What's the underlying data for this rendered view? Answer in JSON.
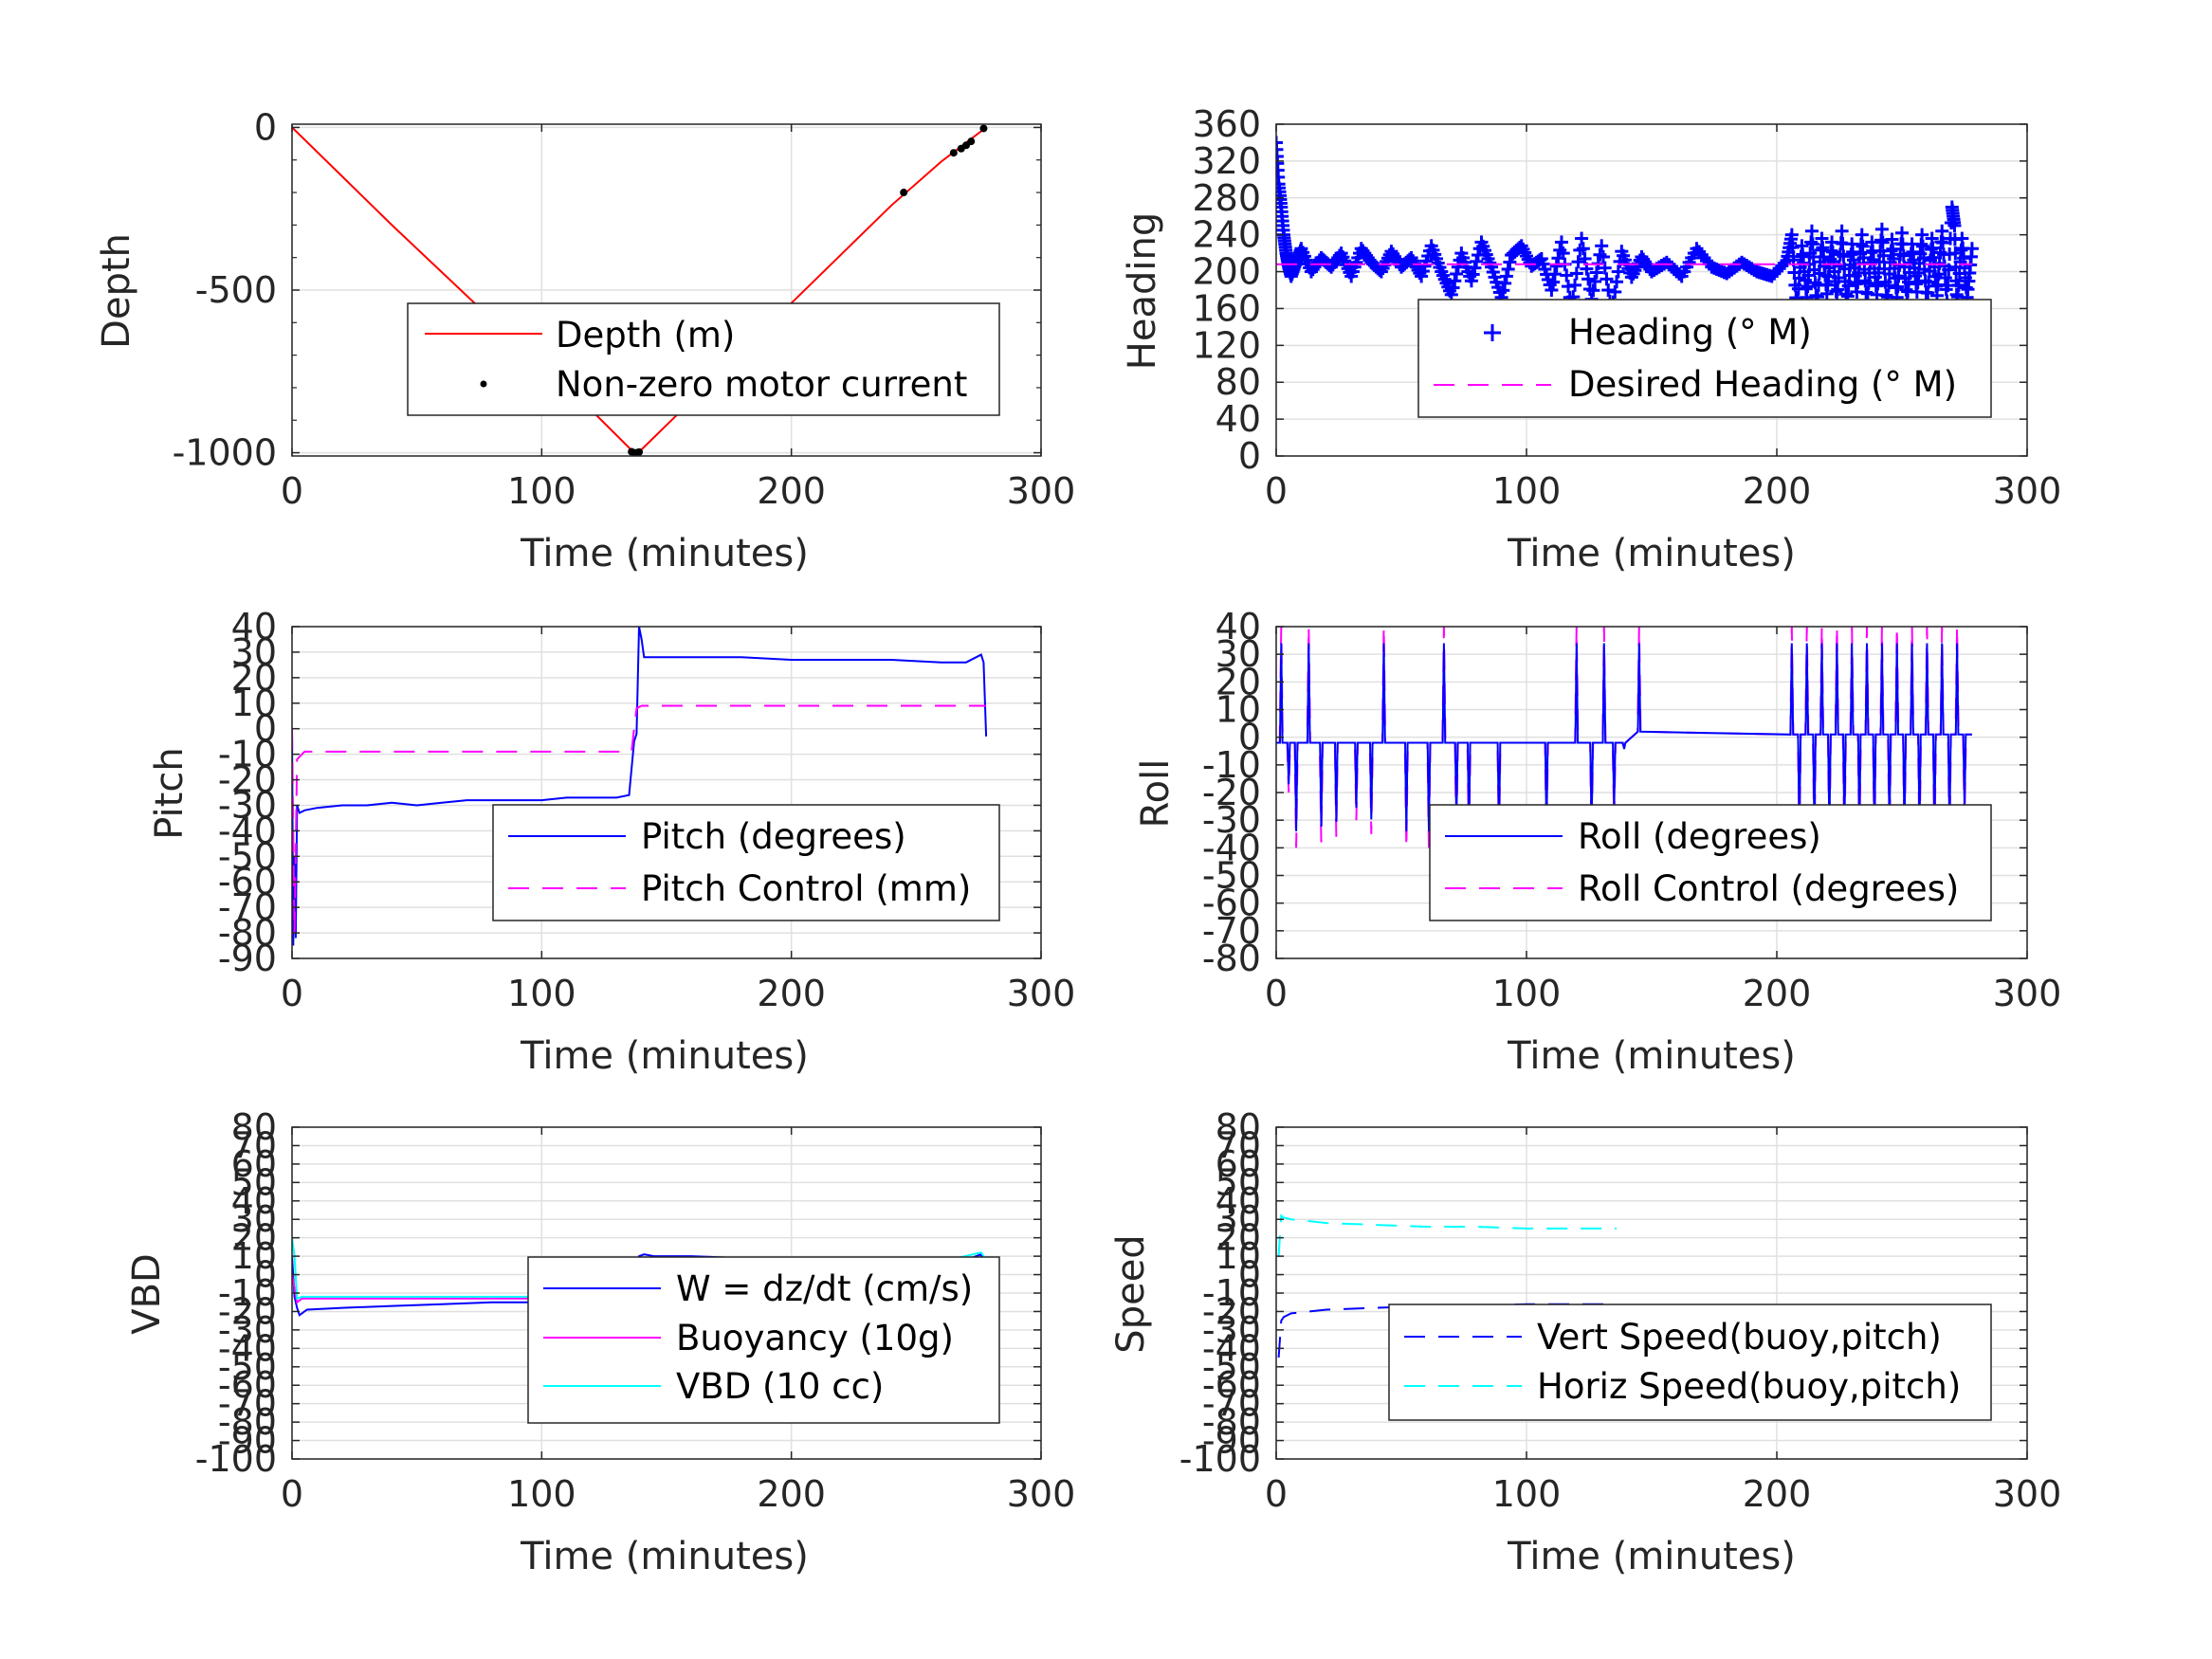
{
  "figure": {
    "background": "#ffffff",
    "grid_color": "#e0e0e0",
    "axes_color": "#262626"
  },
  "chart_data": [
    {
      "id": "depth",
      "type": "line",
      "xlabel": "Time (minutes)",
      "ylabel": "Depth",
      "xlim": [
        0,
        300
      ],
      "ylim": [
        -1010,
        10
      ],
      "xticks": [
        0,
        100,
        200,
        300
      ],
      "xtick_labels": [
        "0",
        "100",
        "200",
        "300"
      ],
      "yticks": [
        0,
        -500,
        -1000
      ],
      "ytick_labels": [
        "0",
        "-500",
        "-1000"
      ],
      "yminor_ticks": [
        -100,
        -200,
        -300,
        -400,
        -600,
        -700,
        -800,
        -900
      ],
      "grid": true,
      "legend_position": "bottom-right",
      "series": [
        {
          "name": "Depth (m)",
          "kind": "line",
          "color": "#ff0000",
          "dash": "",
          "x": [
            0,
            20,
            40,
            60,
            80,
            100,
            120,
            137,
            140,
            160,
            180,
            200,
            220,
            240,
            260,
            278
          ],
          "y": [
            0,
            -150,
            -300,
            -445,
            -590,
            -730,
            -870,
            -1000,
            -990,
            -840,
            -690,
            -540,
            -390,
            -240,
            -105,
            0
          ]
        },
        {
          "name": "Non-zero motor current",
          "kind": "dots",
          "color": "#000000",
          "x": [
            136,
            137,
            138,
            139,
            245,
            265,
            268,
            270,
            272,
            277
          ],
          "y": [
            -997,
            -1000,
            -1000,
            -998,
            -200,
            -78,
            -65,
            -55,
            -43,
            -3
          ]
        }
      ]
    },
    {
      "id": "heading",
      "type": "line",
      "xlabel": "Time (minutes)",
      "ylabel": "Heading",
      "xlim": [
        0,
        300
      ],
      "ylim": [
        0,
        360
      ],
      "xticks": [
        0,
        100,
        200,
        300
      ],
      "xtick_labels": [
        "0",
        "100",
        "200",
        "300"
      ],
      "yticks": [
        0,
        40,
        80,
        120,
        160,
        200,
        240,
        280,
        320,
        360
      ],
      "ytick_labels": [
        "0",
        "40",
        "80",
        "120",
        "160",
        "200",
        "240",
        "280",
        "320",
        "360"
      ],
      "grid": true,
      "legend_position": "bottom-right",
      "series": [
        {
          "name": "Heading (° M)",
          "kind": "plus",
          "color": "#0000ff",
          "x": [
            0,
            1,
            2,
            3,
            4,
            5,
            6,
            8,
            10,
            14,
            18,
            22,
            26,
            30,
            34,
            38,
            42,
            46,
            50,
            54,
            58,
            62,
            66,
            70,
            74,
            78,
            82,
            86,
            90,
            94,
            98,
            102,
            106,
            110,
            114,
            118,
            122,
            126,
            130,
            134,
            138,
            142,
            146,
            150,
            156,
            162,
            168,
            174,
            180,
            186,
            192,
            198,
            204,
            206,
            208,
            210,
            212,
            214,
            216,
            218,
            220,
            222,
            224,
            226,
            228,
            230,
            232,
            234,
            236,
            238,
            240,
            242,
            244,
            246,
            248,
            250,
            252,
            254,
            256,
            258,
            260,
            262,
            264,
            266,
            268,
            270,
            271,
            272,
            274,
            276,
            278
          ],
          "y": [
            340,
            295,
            270,
            240,
            220,
            205,
            195,
            210,
            225,
            200,
            215,
            205,
            220,
            195,
            225,
            210,
            200,
            222,
            205,
            215,
            195,
            228,
            200,
            175,
            220,
            190,
            232,
            205,
            172,
            218,
            228,
            206,
            214,
            180,
            232,
            160,
            236,
            170,
            228,
            156,
            222,
            194,
            216,
            200,
            210,
            195,
            225,
            205,
            198,
            210,
            200,
            195,
            212,
            240,
            158,
            228,
            172,
            244,
            160,
            236,
            176,
            232,
            168,
            244,
            162,
            230,
            178,
            240,
            165,
            232,
            175,
            246,
            160,
            235,
            172,
            242,
            168,
            230,
            178,
            240,
            165,
            236,
            174,
            244,
            168,
            270,
            250,
            160,
            236,
            172,
            225
          ]
        },
        {
          "name": "Desired Heading (° M)",
          "kind": "line",
          "color": "#ff00ff",
          "dash": "22 14",
          "x": [
            0,
            278
          ],
          "y": [
            208,
            208
          ]
        }
      ]
    },
    {
      "id": "pitch",
      "type": "line",
      "xlabel": "Time (minutes)",
      "ylabel": "Pitch",
      "xlim": [
        0,
        300
      ],
      "ylim": [
        -90,
        40
      ],
      "xticks": [
        0,
        100,
        200,
        300
      ],
      "xtick_labels": [
        "0",
        "100",
        "200",
        "300"
      ],
      "yticks": [
        40,
        30,
        20,
        10,
        0,
        -10,
        -20,
        -30,
        -40,
        -50,
        -60,
        -70,
        -80,
        -90
      ],
      "ytick_labels": [
        "40",
        "30",
        "20",
        "10",
        "0",
        "-10",
        "-20",
        "-30",
        "-40",
        "-50",
        "-60",
        "-70",
        "-80",
        "-90"
      ],
      "grid": true,
      "legend_position": "bottom-right",
      "series": [
        {
          "name": "Pitch (degrees)",
          "kind": "line",
          "color": "#0000ff",
          "dash": "",
          "x": [
            0,
            0.5,
            1,
            1.5,
            2,
            3,
            5,
            10,
            20,
            30,
            40,
            50,
            60,
            70,
            80,
            90,
            100,
            110,
            120,
            130,
            135,
            137,
            138,
            139,
            140,
            141,
            145,
            160,
            180,
            200,
            220,
            240,
            260,
            270,
            274,
            276,
            277,
            278
          ],
          "y": [
            0,
            -85,
            -50,
            -82,
            -30,
            -33,
            -32,
            -31,
            -30,
            -30,
            -29,
            -30,
            -29,
            -28,
            -28,
            -28,
            -28,
            -27,
            -27,
            -27,
            -26,
            -5,
            -2,
            40,
            35,
            28,
            28,
            28,
            28,
            27,
            27,
            27,
            26,
            26,
            28,
            29,
            26,
            -3
          ]
        },
        {
          "name": "Pitch Control (mm)",
          "kind": "line",
          "color": "#ff00ff",
          "dash": "22 14",
          "x": [
            0,
            1,
            2,
            5,
            60,
            120,
            136,
            137,
            138,
            140,
            180,
            240,
            276,
            278
          ],
          "y": [
            0,
            -80,
            -12,
            -9,
            -9,
            -9,
            -9,
            0,
            8,
            9,
            9,
            9,
            9,
            9
          ]
        }
      ]
    },
    {
      "id": "roll",
      "type": "line",
      "xlabel": "Time (minutes)",
      "ylabel": "Roll",
      "xlim": [
        0,
        300
      ],
      "ylim": [
        -80,
        40
      ],
      "xticks": [
        0,
        100,
        200,
        300
      ],
      "xtick_labels": [
        "0",
        "100",
        "200",
        "300"
      ],
      "yticks": [
        40,
        30,
        20,
        10,
        0,
        -10,
        -20,
        -30,
        -40,
        -50,
        -60,
        -70,
        -80
      ],
      "ytick_labels": [
        "40",
        "30",
        "20",
        "10",
        "0",
        "-10",
        "-20",
        "-30",
        "-40",
        "-50",
        "-60",
        "-70",
        "-80"
      ],
      "grid": true,
      "legend_position": "bottom-right",
      "roll_base": [
        {
          "x0": 0,
          "x1": 140,
          "y": -2
        },
        {
          "x0": 140,
          "x1": 205,
          "y": 2
        },
        {
          "x0": 205,
          "x1": 278,
          "y": 1
        }
      ],
      "roll_spikes": [
        {
          "x": 2,
          "peak": 40
        },
        {
          "x": 5,
          "peak": -20
        },
        {
          "x": 8,
          "peak": -40
        },
        {
          "x": 13,
          "peak": 40
        },
        {
          "x": 18,
          "peak": -38
        },
        {
          "x": 24,
          "peak": -36
        },
        {
          "x": 32,
          "peak": -30
        },
        {
          "x": 38,
          "peak": -35
        },
        {
          "x": 43,
          "peak": 40
        },
        {
          "x": 52,
          "peak": -40
        },
        {
          "x": 61,
          "peak": -40
        },
        {
          "x": 67,
          "peak": 40
        },
        {
          "x": 72,
          "peak": -36
        },
        {
          "x": 77,
          "peak": -40
        },
        {
          "x": 89,
          "peak": -40
        },
        {
          "x": 108,
          "peak": -40
        },
        {
          "x": 120,
          "peak": 40
        },
        {
          "x": 126,
          "peak": -40
        },
        {
          "x": 131,
          "peak": 40
        },
        {
          "x": 135,
          "peak": -30
        },
        {
          "x": 139,
          "peak": -5
        },
        {
          "x": 145,
          "peak": 40
        },
        {
          "x": 206,
          "peak": 40
        },
        {
          "x": 209,
          "peak": -40
        },
        {
          "x": 212,
          "peak": 40
        },
        {
          "x": 215,
          "peak": -40
        },
        {
          "x": 218,
          "peak": 40
        },
        {
          "x": 221,
          "peak": -40
        },
        {
          "x": 224,
          "peak": 40
        },
        {
          "x": 227,
          "peak": -40
        },
        {
          "x": 230,
          "peak": 40
        },
        {
          "x": 233,
          "peak": -40
        },
        {
          "x": 236,
          "peak": 40
        },
        {
          "x": 239,
          "peak": -40
        },
        {
          "x": 242,
          "peak": 40
        },
        {
          "x": 245,
          "peak": -40
        },
        {
          "x": 248,
          "peak": 40
        },
        {
          "x": 251,
          "peak": -40
        },
        {
          "x": 254,
          "peak": 40
        },
        {
          "x": 257,
          "peak": -40
        },
        {
          "x": 260,
          "peak": 40
        },
        {
          "x": 263,
          "peak": -40
        },
        {
          "x": 266,
          "peak": 40
        },
        {
          "x": 269,
          "peak": -40
        },
        {
          "x": 272,
          "peak": 40
        },
        {
          "x": 275,
          "peak": -30
        }
      ],
      "series": [
        {
          "name": "Roll (degrees)",
          "kind": "line",
          "color": "#0000ff",
          "dash": ""
        },
        {
          "name": "Roll Control (degrees)",
          "kind": "line",
          "color": "#ff00ff",
          "dash": "22 14"
        }
      ]
    },
    {
      "id": "vbd",
      "type": "line",
      "xlabel": "Time (minutes)",
      "ylabel": "VBD",
      "xlim": [
        0,
        300
      ],
      "ylim": [
        -100,
        80
      ],
      "xticks": [
        0,
        100,
        200,
        300
      ],
      "xtick_labels": [
        "0",
        "100",
        "200",
        "300"
      ],
      "yticks": [
        80,
        70,
        60,
        50,
        40,
        30,
        20,
        10,
        0,
        -10,
        -20,
        -30,
        -40,
        -50,
        -60,
        -70,
        -80,
        -90,
        -100
      ],
      "ytick_labels": [
        "80",
        "70",
        "60",
        "50",
        "40",
        "30",
        "20",
        "10",
        "0",
        "-10",
        "-20",
        "-30",
        "-40",
        "-50",
        "-60",
        "-70",
        "-80",
        "-90",
        "-100"
      ],
      "grid": true,
      "legend_position": "bottom-right",
      "series": [
        {
          "name": "W = dz/dt (cm/s)",
          "kind": "line",
          "color": "#0000ff",
          "dash": "",
          "x": [
            0,
            1,
            2,
            3,
            6,
            20,
            40,
            60,
            80,
            100,
            120,
            135,
            137,
            139,
            141,
            145,
            160,
            180,
            200,
            220,
            240,
            260,
            270,
            276,
            277,
            278
          ],
          "y": [
            10,
            -12,
            -18,
            -22,
            -19,
            -18,
            -17,
            -16,
            -15,
            -15,
            -14,
            -13,
            -10,
            10,
            11,
            10,
            10,
            9,
            9,
            8,
            8,
            7,
            8,
            11,
            5,
            -5
          ]
        },
        {
          "name": "Buoyancy (10g)",
          "kind": "line",
          "color": "#ff00ff",
          "dash": "",
          "x": [
            0,
            2,
            4,
            10,
            60,
            120,
            136,
            138,
            140,
            200,
            276,
            278
          ],
          "y": [
            0,
            -15,
            -13,
            -13,
            -13,
            -13,
            -13,
            0,
            7,
            7,
            7,
            7
          ]
        },
        {
          "name": "VBD (10 cc)",
          "kind": "line",
          "color": "#00ffff",
          "dash": "",
          "x": [
            0,
            1,
            2,
            4,
            10,
            60,
            120,
            136,
            138,
            140,
            200,
            260,
            276,
            278
          ],
          "y": [
            20,
            10,
            -13,
            -12,
            -12,
            -12,
            -12,
            -12,
            0,
            7,
            7,
            7,
            12,
            8
          ]
        }
      ]
    },
    {
      "id": "speed",
      "type": "line",
      "xlabel": "Time (minutes)",
      "ylabel": "Speed",
      "xlim": [
        0,
        300
      ],
      "ylim": [
        -100,
        80
      ],
      "xticks": [
        0,
        100,
        200,
        300
      ],
      "xtick_labels": [
        "0",
        "100",
        "200",
        "300"
      ],
      "yticks": [
        80,
        70,
        60,
        50,
        40,
        30,
        20,
        10,
        0,
        -10,
        -20,
        -30,
        -40,
        -50,
        -60,
        -70,
        -80,
        -90,
        -100
      ],
      "ytick_labels": [
        "80",
        "70",
        "60",
        "50",
        "40",
        "30",
        "20",
        "10",
        "0",
        "-10",
        "-20",
        "-30",
        "-40",
        "-50",
        "-60",
        "-70",
        "-80",
        "-90",
        "-100"
      ],
      "grid": true,
      "legend_position": "bottom-right",
      "series": [
        {
          "name": "Vert Speed(buoy,pitch)",
          "kind": "line",
          "color": "#0000ff",
          "dash": "22 14",
          "x": [
            1,
            2,
            3,
            6,
            20,
            40,
            60,
            80,
            100,
            120,
            136
          ],
          "y": [
            -45,
            -25,
            -23,
            -21,
            -19,
            -18,
            -17,
            -17,
            -16,
            -16,
            -16
          ]
        },
        {
          "name": "Horiz Speed(buoy,pitch)",
          "kind": "line",
          "color": "#00ffff",
          "dash": "22 14",
          "x": [
            1,
            2,
            3,
            6,
            20,
            40,
            60,
            80,
            100,
            120,
            136
          ],
          "y": [
            10,
            32,
            31,
            30,
            28,
            27,
            26,
            26,
            25,
            25,
            25
          ]
        }
      ]
    }
  ]
}
